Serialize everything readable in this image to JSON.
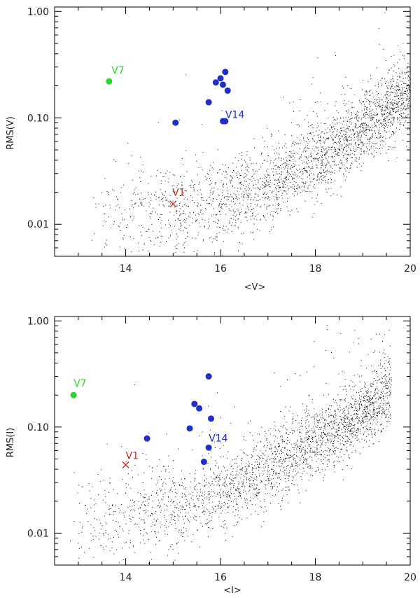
{
  "colors": {
    "background": "#ffffff",
    "axes": "#000000",
    "field_points": "#000000",
    "blue_variables": "#1f2fc8",
    "v7": "#2ed42e",
    "v1": "#cc2a2a"
  },
  "chart_data": [
    {
      "type": "scatter",
      "title": "",
      "xlabel": "<V>",
      "ylabel": "RMS(V)",
      "xlim": [
        12.5,
        20
      ],
      "ylim": [
        0.005,
        1.1
      ],
      "yscale": "log",
      "xticks": [
        14,
        16,
        18,
        20
      ],
      "xtick_labels": [
        "14",
        "16",
        "18",
        "20"
      ],
      "yticks": [
        0.01,
        0.1,
        1.0
      ],
      "ytick_labels": [
        "0.01",
        "0.10",
        "1.00"
      ],
      "grid": false,
      "legend": "none",
      "series": [
        {
          "role": "blue_variables",
          "marker": "filled-circle",
          "x": [
            15.05,
            15.75,
            15.9,
            16.0,
            16.05,
            16.1,
            16.15,
            16.05,
            16.1
          ],
          "y": [
            0.09,
            0.14,
            0.215,
            0.235,
            0.205,
            0.27,
            0.18,
            0.093,
            0.093
          ]
        },
        {
          "role": "v7",
          "marker": "filled-circle",
          "x": [
            13.65
          ],
          "y": [
            0.22
          ]
        },
        {
          "role": "v1",
          "marker": "cross",
          "x": [
            15.0
          ],
          "y": [
            0.0155
          ]
        }
      ],
      "field_cloud": {
        "description_of_trend": "dense cloud of faint stars rising from ~0.01 near <V>=14 to ~0.15–0.3 at <V>=20",
        "x_range": [
          13.2,
          20
        ],
        "count": 2600
      },
      "annotations": [
        {
          "text": "V7",
          "x": 13.7,
          "y": 0.26,
          "color_key": "v7"
        },
        {
          "text": "V14",
          "x": 16.1,
          "y": 0.1,
          "color_key": "blue_variables"
        },
        {
          "text": "V1",
          "x": 14.98,
          "y": 0.0185,
          "color_key": "v1"
        }
      ]
    },
    {
      "type": "scatter",
      "title": "",
      "xlabel": "<I>",
      "ylabel": "RMS(I)",
      "xlim": [
        12.5,
        20
      ],
      "ylim": [
        0.005,
        1.1
      ],
      "yscale": "log",
      "xticks": [
        14,
        16,
        18,
        20
      ],
      "xtick_labels": [
        "14",
        "16",
        "18",
        "20"
      ],
      "yticks": [
        0.01,
        0.1,
        1.0
      ],
      "ytick_labels": [
        "0.01",
        "0.10",
        "1.00"
      ],
      "grid": false,
      "legend": "none",
      "series": [
        {
          "role": "blue_variables",
          "marker": "filled-circle",
          "x": [
            14.45,
            15.35,
            15.45,
            15.55,
            15.75,
            15.8,
            15.65,
            15.75
          ],
          "y": [
            0.078,
            0.097,
            0.165,
            0.15,
            0.3,
            0.12,
            0.047,
            0.064
          ]
        },
        {
          "role": "v7",
          "marker": "filled-circle",
          "x": [
            12.9
          ],
          "y": [
            0.2
          ]
        },
        {
          "role": "v1",
          "marker": "cross",
          "x": [
            14.0
          ],
          "y": [
            0.044
          ]
        }
      ],
      "field_cloud": {
        "description_of_trend": "dense cloud rising from ~0.01 near <I>=13 to ~0.2–0.3 at <I>=19",
        "x_range": [
          12.7,
          19.6
        ],
        "count": 2600
      },
      "annotations": [
        {
          "text": "V7",
          "x": 12.9,
          "y": 0.24,
          "color_key": "v7"
        },
        {
          "text": "V14",
          "x": 15.75,
          "y": 0.073,
          "color_key": "blue_variables"
        },
        {
          "text": "V1",
          "x": 14.0,
          "y": 0.05,
          "color_key": "v1"
        }
      ]
    }
  ]
}
